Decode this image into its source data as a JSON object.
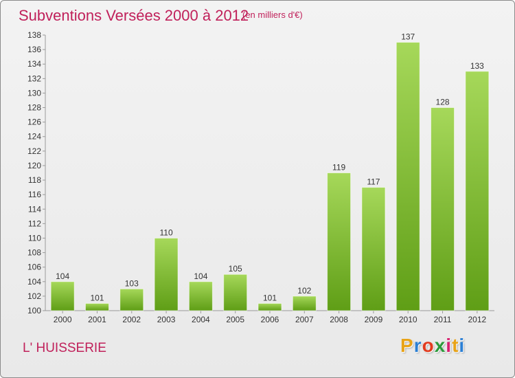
{
  "header": {
    "title": "Subventions Versées 2000 à 2012",
    "unit": "(en milliers d'€)"
  },
  "footer": {
    "place": "L' HUISSERIE",
    "logo_letters": [
      "P",
      "r",
      "o",
      "x",
      "i",
      "t",
      "i"
    ],
    "logo_colors": [
      "#e8a317",
      "#2b7fd4",
      "#e23b1f",
      "#2b9a3a",
      "#d6206e",
      "#e8a317",
      "#2b7fd4"
    ]
  },
  "colors": {
    "title": "#c0205a",
    "bar_light": "#a6d85a",
    "bar_dark": "#5f9e16",
    "axis": "#9a9a9a"
  },
  "chart_data": {
    "type": "bar",
    "title": "Subventions Versées 2000 à 2012",
    "subtitle": "(en milliers d'€)",
    "xlabel": "",
    "ylabel": "",
    "categories": [
      "2000",
      "2001",
      "2002",
      "2003",
      "2004",
      "2005",
      "2006",
      "2007",
      "2008",
      "2009",
      "2010",
      "2011",
      "2012"
    ],
    "values": [
      104,
      101,
      103,
      110,
      104,
      105,
      101,
      102,
      119,
      117,
      137,
      128,
      133
    ],
    "ylim": [
      100,
      138
    ],
    "yticks": [
      100,
      102,
      104,
      106,
      108,
      110,
      112,
      114,
      116,
      118,
      120,
      122,
      124,
      126,
      128,
      130,
      132,
      134,
      136,
      138
    ],
    "grid": false,
    "legend": "none",
    "data_labels": true
  }
}
